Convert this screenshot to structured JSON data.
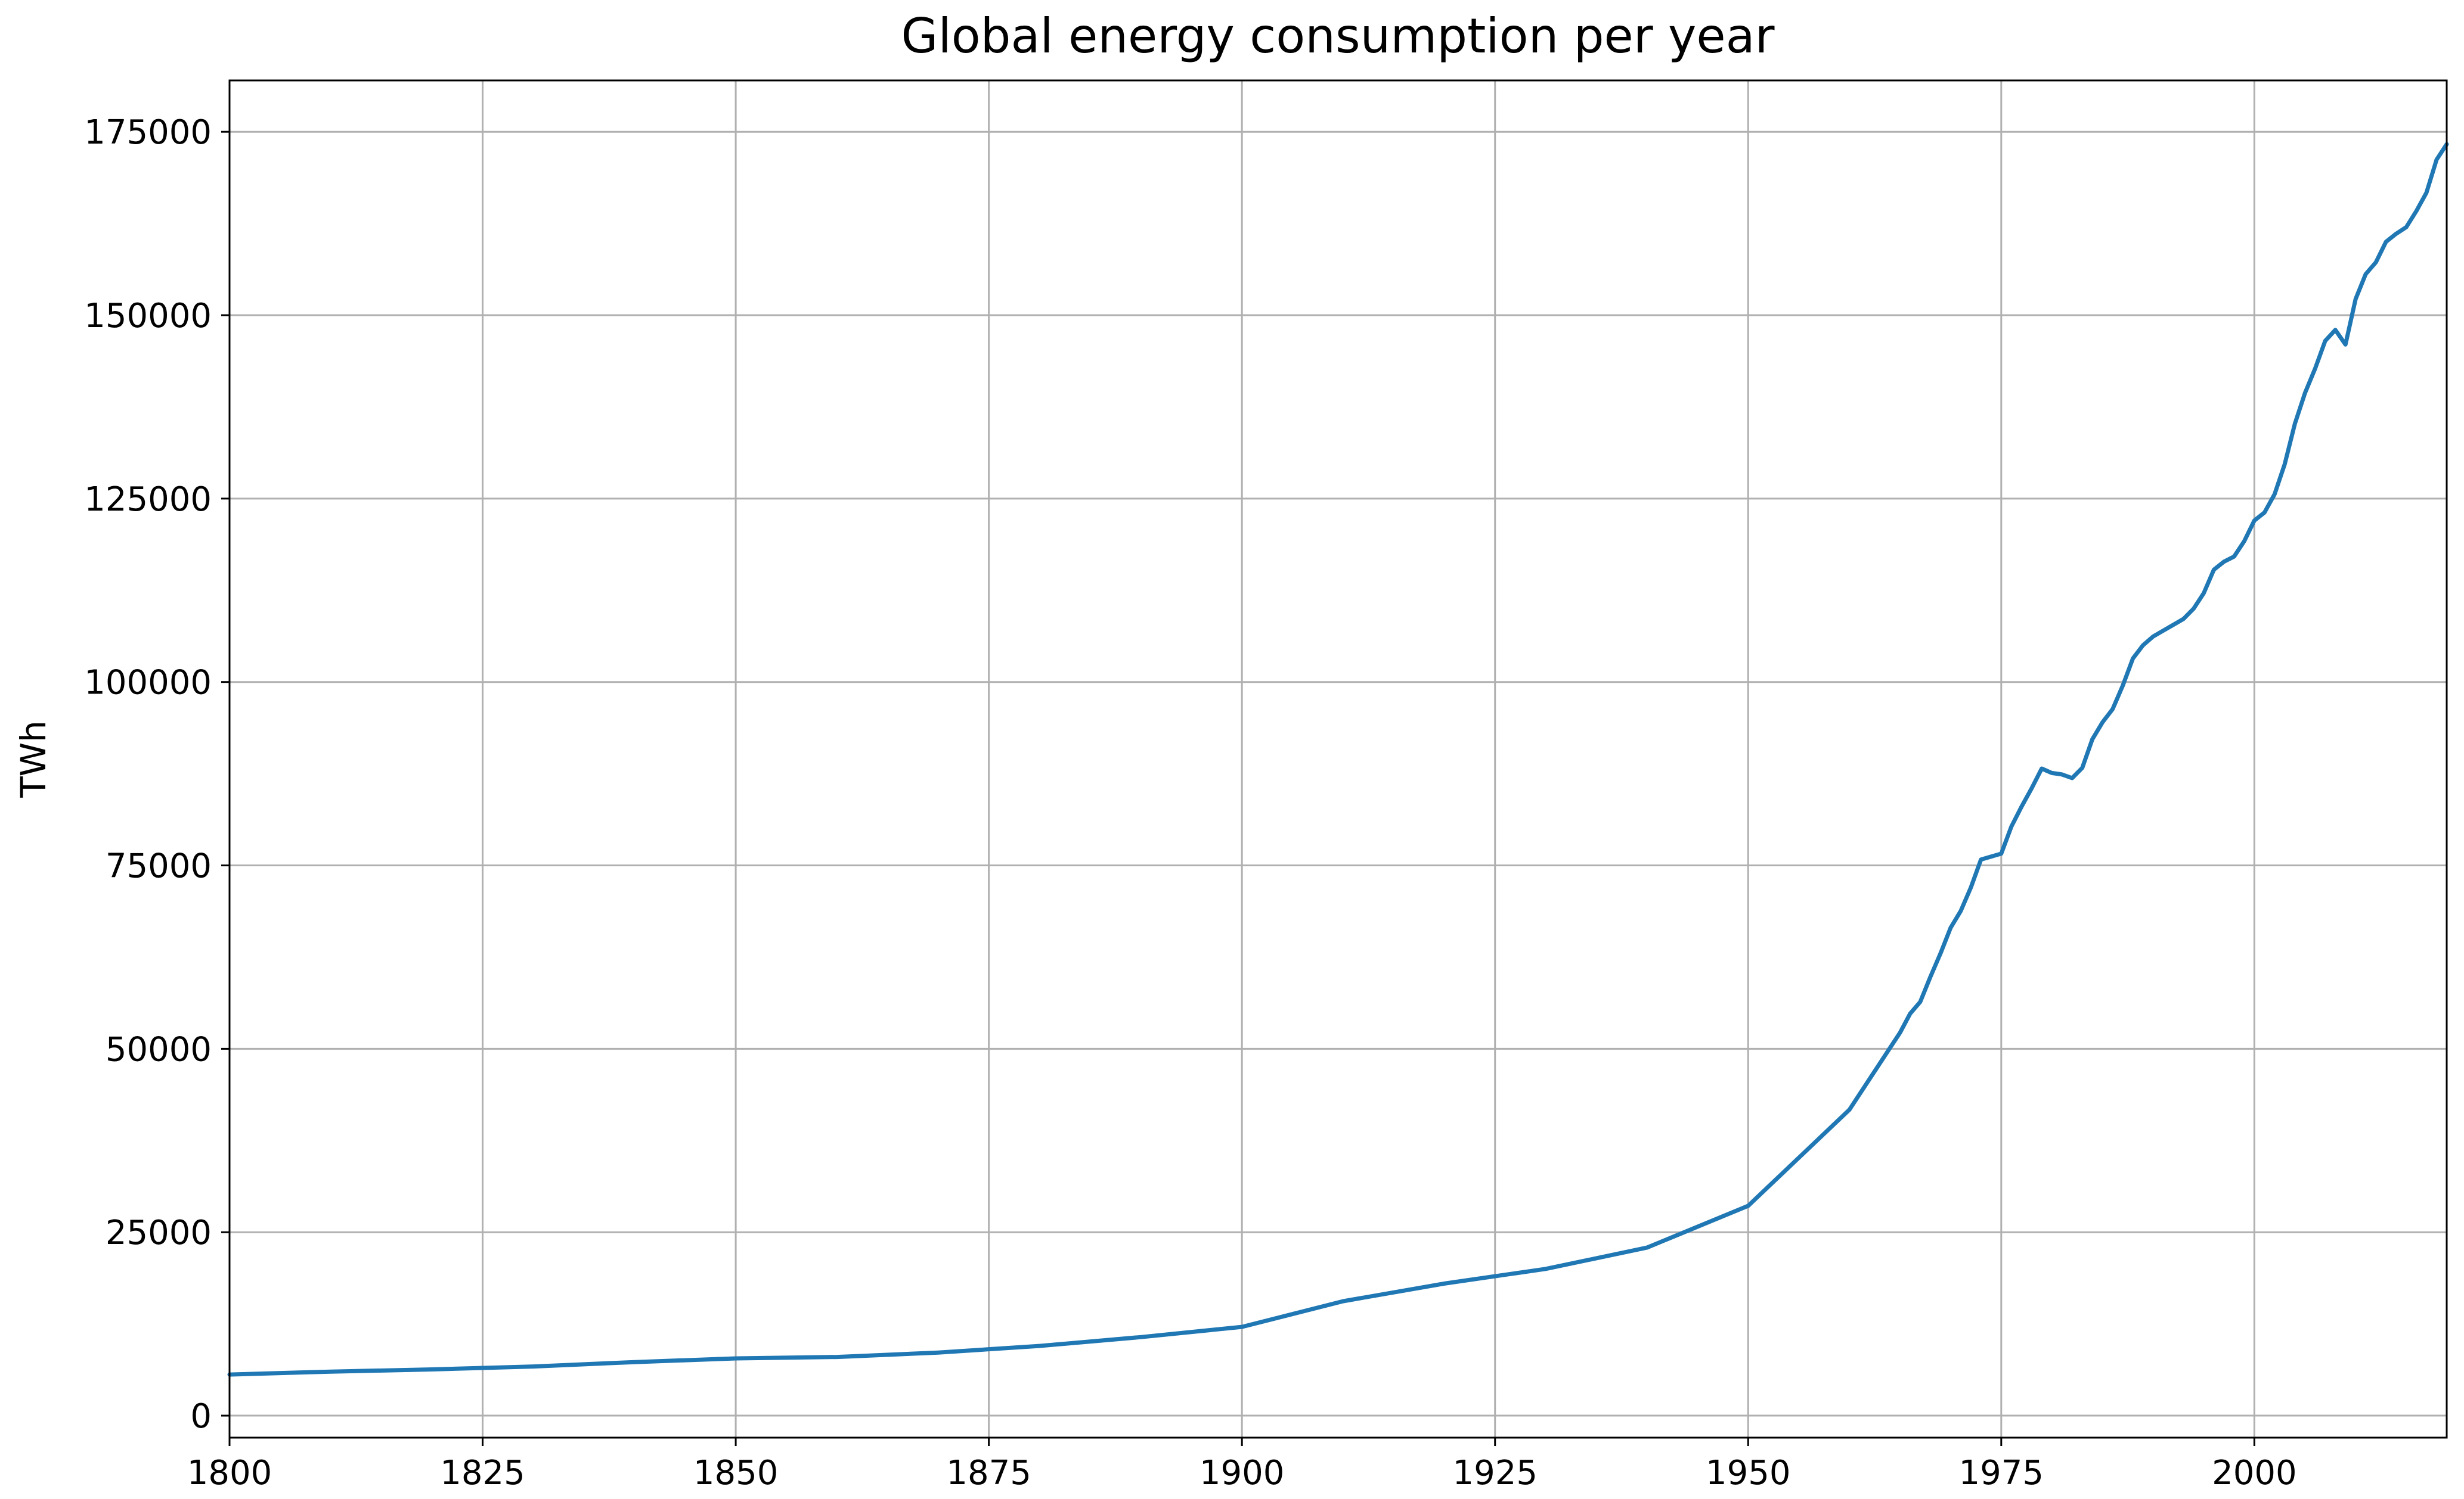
{
  "chart_data": {
    "type": "line",
    "title": "Global energy consumption per year",
    "xlabel": "",
    "ylabel": "TWh",
    "xlim": [
      1800,
      2019
    ],
    "ylim": [
      -3000,
      182000
    ],
    "x_ticks": [
      1800,
      1825,
      1850,
      1875,
      1900,
      1925,
      1950,
      1975,
      2000
    ],
    "y_ticks": [
      0,
      25000,
      50000,
      75000,
      100000,
      125000,
      150000,
      175000
    ],
    "grid": true,
    "line_color": "#1f77b4",
    "series": [
      {
        "x": [
          1800,
          1810,
          1820,
          1830,
          1840,
          1850,
          1860,
          1870,
          1880,
          1890,
          1900,
          1910,
          1920,
          1930,
          1940,
          1950,
          1960,
          1965,
          1966,
          1967,
          1968,
          1969,
          1970,
          1971,
          1972,
          1973,
          1974,
          1975,
          1976,
          1977,
          1978,
          1979,
          1980,
          1981,
          1982,
          1983,
          1984,
          1985,
          1986,
          1987,
          1988,
          1989,
          1990,
          1991,
          1992,
          1993,
          1994,
          1995,
          1996,
          1997,
          1998,
          1999,
          2000,
          2001,
          2002,
          2003,
          2004,
          2005,
          2006,
          2007,
          2008,
          2009,
          2010,
          2011,
          2012,
          2013,
          2014,
          2015,
          2016,
          2017,
          2018,
          2019
        ],
        "y": [
          5600,
          6000,
          6300,
          6700,
          7300,
          7800,
          8000,
          8600,
          9500,
          10700,
          12100,
          15600,
          18000,
          20000,
          22900,
          28600,
          41700,
          52200,
          54800,
          56400,
          59800,
          63000,
          66500,
          68800,
          72000,
          75800,
          76200,
          76600,
          80300,
          83000,
          85500,
          88200,
          87600,
          87400,
          86900,
          88300,
          92200,
          94500,
          96300,
          99500,
          103200,
          105000,
          106200,
          107000,
          107800,
          108600,
          110000,
          112100,
          115300,
          116400,
          117100,
          119200,
          122000,
          123100,
          125600,
          129700,
          135200,
          139400,
          142700,
          146500,
          148000,
          146000,
          152200,
          155600,
          157200,
          160000,
          161100,
          162000,
          164200,
          166700,
          171200,
          173300
        ]
      }
    ]
  }
}
